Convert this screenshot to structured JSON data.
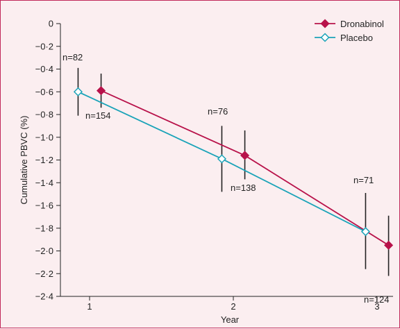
{
  "chart_data": {
    "type": "line",
    "xlabel": "Year",
    "ylabel": "Cumulative PBVC (%)",
    "ylim": [
      -2.4,
      0
    ],
    "yticks": [
      0,
      -0.2,
      -0.4,
      -0.6,
      -0.8,
      -1.0,
      -1.2,
      -1.4,
      -1.6,
      -1.8,
      -2.0,
      -2.2,
      -2.4
    ],
    "ytick_labels": [
      "0",
      "−0·2",
      "−0·4",
      "−0·6",
      "−0·8",
      "−1·0",
      "−1·2",
      "−1·4",
      "−1·6",
      "−1·8",
      "−2·0",
      "−2·2",
      "−2·4"
    ],
    "xticks": [
      1,
      2,
      3
    ],
    "xtick_labels": [
      "1",
      "2",
      "3"
    ],
    "grid": false,
    "legend_position": "top-right",
    "series": [
      {
        "name": "Dronabinol",
        "color": "#b8124a",
        "marker": "filled-diamond",
        "x": [
          1.08,
          2.08,
          3.08
        ],
        "y": [
          -0.59,
          -1.16,
          -1.95
        ],
        "ci_low": [
          -0.74,
          -1.37,
          -2.22
        ],
        "ci_high": [
          -0.44,
          -0.94,
          -1.69
        ],
        "n_labels": [
          "n=154",
          "n=138",
          "n=124"
        ]
      },
      {
        "name": "Placebo",
        "color": "#1aa3b8",
        "marker": "open-diamond",
        "x": [
          0.92,
          1.92,
          2.92
        ],
        "y": [
          -0.6,
          -1.19,
          -1.83
        ],
        "ci_low": [
          -0.81,
          -1.48,
          -2.16
        ],
        "ci_high": [
          -0.39,
          -0.9,
          -1.49
        ],
        "n_labels": [
          "n=82",
          "n=76",
          "n=71"
        ]
      }
    ]
  }
}
